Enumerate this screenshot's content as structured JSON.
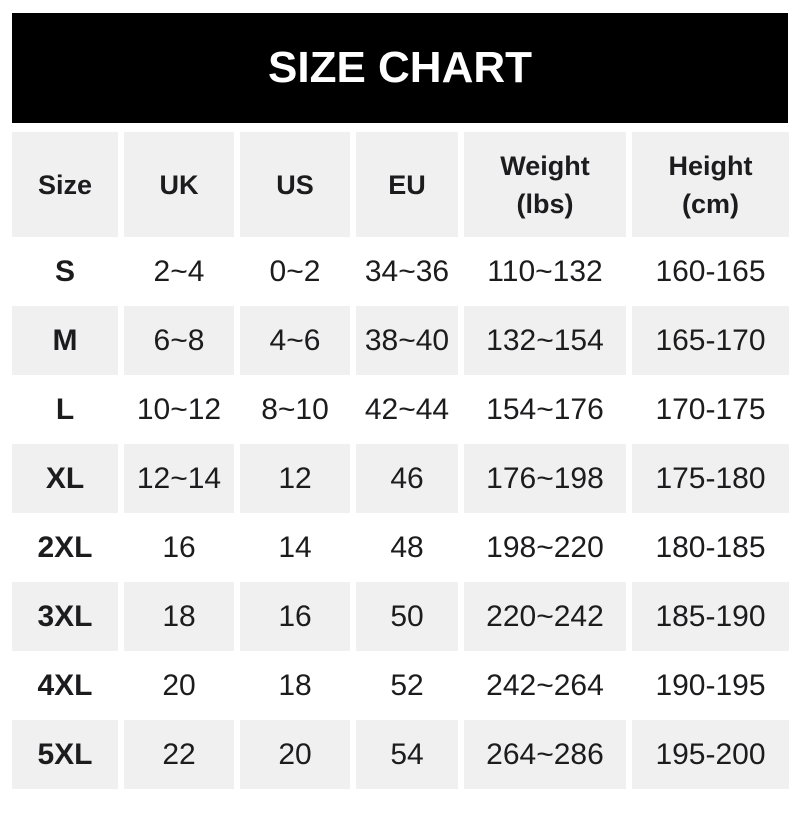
{
  "banner": {
    "title": "SIZE CHART"
  },
  "colors": {
    "banner_bg": "#000000",
    "banner_text": "#ffffff",
    "row_alt_bg": "#f0f0f0",
    "text": "#1c1c1e",
    "page_bg": "#ffffff"
  },
  "chart_data": {
    "type": "table",
    "title": "SIZE CHART",
    "columns": [
      "Size",
      "UK",
      "US",
      "EU",
      "Weight (lbs)",
      "Height (cm)"
    ],
    "rows": [
      [
        "S",
        "2~4",
        "0~2",
        "34~36",
        "110~132",
        "160-165"
      ],
      [
        "M",
        "6~8",
        "4~6",
        "38~40",
        "132~154",
        "165-170"
      ],
      [
        "L",
        "10~12",
        "8~10",
        "42~44",
        "154~176",
        "170-175"
      ],
      [
        "XL",
        "12~14",
        "12",
        "46",
        "176~198",
        "175-180"
      ],
      [
        "2XL",
        "16",
        "14",
        "48",
        "198~220",
        "180-185"
      ],
      [
        "3XL",
        "18",
        "16",
        "50",
        "220~242",
        "185-190"
      ],
      [
        "4XL",
        "20",
        "18",
        "52",
        "242~264",
        "190-195"
      ],
      [
        "5XL",
        "22",
        "20",
        "54",
        "264~286",
        "195-200"
      ]
    ],
    "layout": {
      "header_background": "#f0f0f0",
      "alternating_row_background": [
        "#ffffff",
        "#f0f0f0"
      ],
      "grid": false,
      "alignment": "center"
    }
  },
  "table": {
    "column_keys": [
      "size",
      "uk",
      "us",
      "eu",
      "weight-lbs",
      "height-cm"
    ],
    "header_lines": [
      [
        "Size"
      ],
      [
        "UK"
      ],
      [
        "US"
      ],
      [
        "EU"
      ],
      [
        "Weight",
        "(lbs)"
      ],
      [
        "Height",
        "(cm)"
      ]
    ]
  }
}
